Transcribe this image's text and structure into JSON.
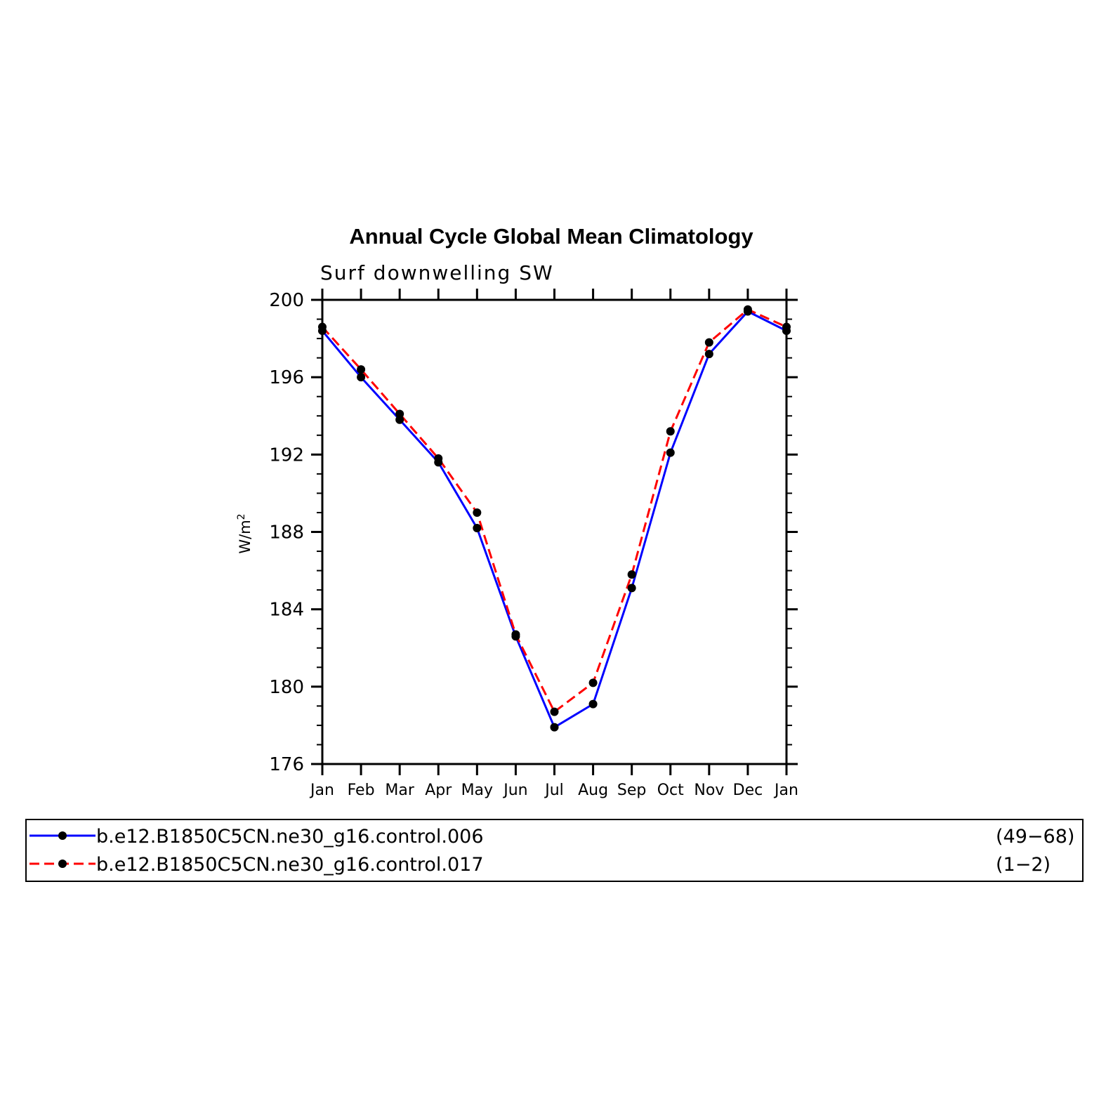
{
  "chart_data": {
    "type": "line",
    "title": "Annual Cycle Global Mean Climatology",
    "subtitle": "Surf downwelling SW",
    "ylabel": "W/m",
    "ylabel_sup": "2",
    "categories": [
      "Jan",
      "Feb",
      "Mar",
      "Apr",
      "May",
      "Jun",
      "Jul",
      "Aug",
      "Sep",
      "Oct",
      "Nov",
      "Dec",
      "Jan"
    ],
    "ylim": [
      176,
      200
    ],
    "yticks": [
      176,
      180,
      184,
      188,
      192,
      196,
      200
    ],
    "series": [
      {
        "name": "b.e12.B1850C5CN.ne30_g16.control.006",
        "years": "(49−68)",
        "color": "#0000ff",
        "dash": "solid",
        "values": [
          198.4,
          196.0,
          193.8,
          191.6,
          188.2,
          182.6,
          177.9,
          179.1,
          185.1,
          192.1,
          197.2,
          199.4,
          198.4
        ]
      },
      {
        "name": "b.e12.B1850C5CN.ne30_g16.control.017",
        "years": "(1−2)",
        "color": "#ff0000",
        "dash": "dashed",
        "values": [
          198.6,
          196.4,
          194.1,
          191.8,
          189.0,
          182.7,
          178.7,
          180.2,
          185.8,
          193.2,
          197.8,
          199.5,
          198.6
        ]
      }
    ],
    "marker_color": "#000000",
    "grid": false,
    "legend_position": "bottom"
  }
}
